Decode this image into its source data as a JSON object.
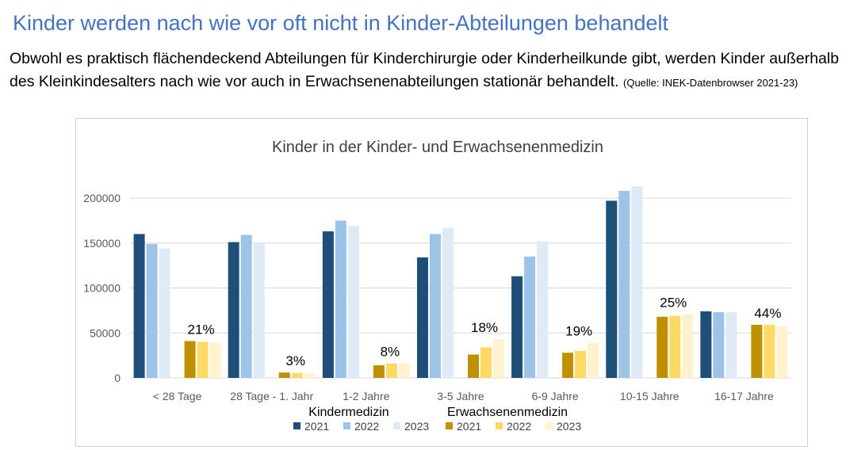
{
  "page": {
    "headline": "Kinder werden nach wie vor oft nicht in Kinder-Abteilungen behandelt",
    "intro_text": "Obwohl es praktisch flächendeckend Abteilungen für Kinderchirurgie oder Kinderheilkunde gibt, werden Kinder außerhalb des Kleinkindesalters nach wie vor auch in Erwachsenenabteilungen stationär behandelt.",
    "source": "(Quelle: INEK-Datenbrowser 2021-23)"
  },
  "chart_data": {
    "type": "bar",
    "title": "Kinder in der Kinder- und Erwachsenenmedizin",
    "categories": [
      "< 28 Tage",
      "28 Tage - 1. Jahr",
      "1-2 Jahre",
      "3-5 Jahre",
      "6-9 Jahre",
      "10-15 Jahre",
      "16-17 Jahre"
    ],
    "ylim": [
      0,
      200000
    ],
    "yticks": [
      0,
      50000,
      100000,
      150000,
      200000
    ],
    "grid": true,
    "legend_groups": [
      "Kindermedizin",
      "Erwachsenenmedizin"
    ],
    "legend_placement": "bottom",
    "series": [
      {
        "group": "Kindermedizin",
        "name": "2021",
        "color": "#1f4e79",
        "values": [
          160000,
          151000,
          163000,
          134000,
          113000,
          197000,
          74000
        ]
      },
      {
        "group": "Kindermedizin",
        "name": "2022",
        "color": "#9dc3e6",
        "values": [
          149000,
          159000,
          175000,
          160000,
          135000,
          208000,
          73000
        ]
      },
      {
        "group": "Kindermedizin",
        "name": "2023",
        "color": "#deebf7",
        "values": [
          144000,
          150000,
          169000,
          167000,
          152000,
          213000,
          73000
        ]
      },
      {
        "group": "Erwachsenenmedizin",
        "name": "2021",
        "color": "#bf9000",
        "values": [
          41000,
          6000,
          14000,
          26000,
          28000,
          68000,
          59000
        ]
      },
      {
        "group": "Erwachsenenmedizin",
        "name": "2022",
        "color": "#ffd966",
        "values": [
          40000,
          5500,
          16000,
          34000,
          30000,
          69000,
          59000
        ]
      },
      {
        "group": "Erwachsenenmedizin",
        "name": "2023",
        "color": "#fff2cc",
        "values": [
          39000,
          5000,
          16500,
          43000,
          39000,
          71000,
          57000
        ]
      }
    ],
    "annotations": [
      "21%",
      "3%",
      "8%",
      "18%",
      "19%",
      "25%",
      "44%"
    ]
  }
}
